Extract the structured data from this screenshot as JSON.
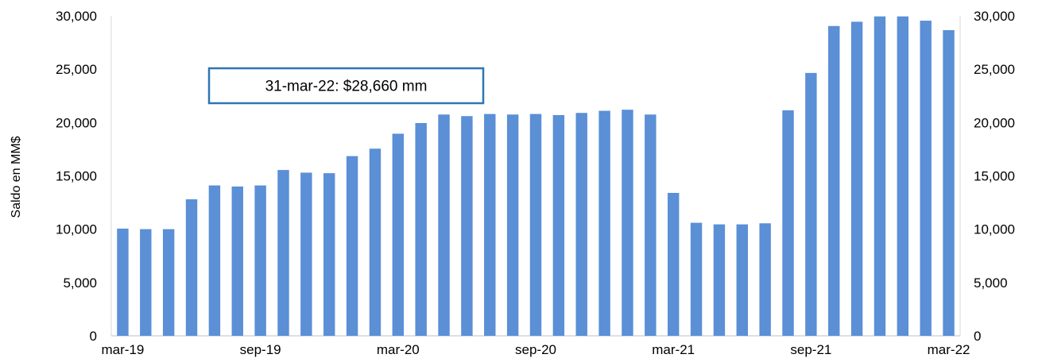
{
  "chart_data": {
    "type": "bar",
    "ylabel": "Saldo en MM$",
    "ylim": [
      0,
      30000
    ],
    "y_ticks": [
      "0",
      "5,000",
      "10,000",
      "15,000",
      "20,000",
      "25,000",
      "30,000"
    ],
    "y_tick_values": [
      0,
      5000,
      10000,
      15000,
      20000,
      25000,
      30000
    ],
    "right_axis_mirrors_left": true,
    "grid": false,
    "bar_color": "#5B8FD6",
    "x": [
      "mar-19",
      "apr-19",
      "may-19",
      "jun-19",
      "jul-19",
      "aug-19",
      "sep-19",
      "oct-19",
      "nov-19",
      "dec-19",
      "jan-20",
      "feb-20",
      "mar-20",
      "apr-20",
      "may-20",
      "jun-20",
      "jul-20",
      "aug-20",
      "sep-20",
      "oct-20",
      "nov-20",
      "dec-20",
      "jan-21",
      "feb-21",
      "mar-21",
      "apr-21",
      "may-21",
      "jun-21",
      "jul-21",
      "aug-21",
      "sep-21",
      "oct-21",
      "nov-21",
      "dec-21",
      "jan-22",
      "feb-22",
      "mar-22"
    ],
    "values": [
      10050,
      10000,
      10000,
      12800,
      14100,
      14000,
      14100,
      15550,
      15300,
      15250,
      16850,
      17550,
      18950,
      19950,
      20750,
      20600,
      20800,
      20750,
      20800,
      20700,
      20900,
      21100,
      21200,
      20750,
      13400,
      10600,
      10450,
      10450,
      10550,
      21150,
      24650,
      29050,
      29450,
      29950,
      29950,
      29550,
      28660
    ],
    "x_tick_labels": [
      "mar-19",
      "sep-19",
      "mar-20",
      "sep-20",
      "mar-21",
      "sep-21",
      "mar-22"
    ],
    "annotation": "31-mar-22: $28,660 mm",
    "annotation_border_color": "#2E75B6"
  }
}
